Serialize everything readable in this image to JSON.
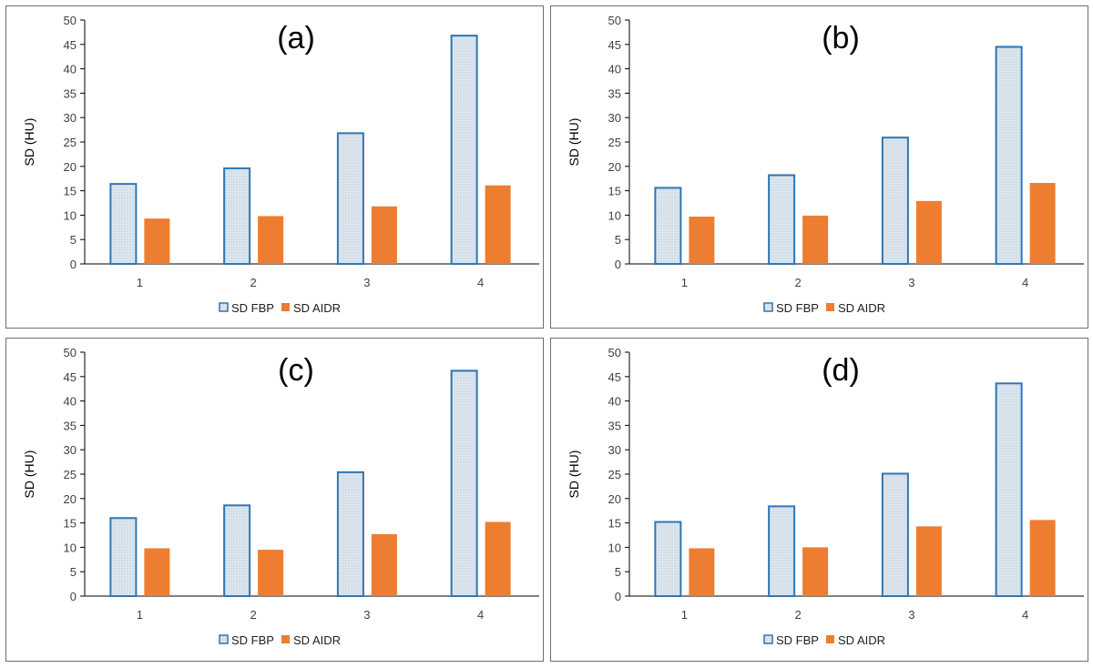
{
  "chart_data": [
    {
      "type": "bar",
      "title": "(a)",
      "ylabel": "SD (HU)",
      "xlabel": "",
      "ylim": [
        0,
        50
      ],
      "yticks": [
        0,
        5,
        10,
        15,
        20,
        25,
        30,
        35,
        40,
        45,
        50
      ],
      "categories": [
        "1",
        "2",
        "3",
        "4"
      ],
      "series": [
        {
          "name": "SD FBP",
          "values": [
            16.4,
            19.6,
            26.8,
            46.8
          ]
        },
        {
          "name": "SD AIDR",
          "values": [
            9.3,
            9.8,
            11.8,
            16.1
          ]
        }
      ],
      "legend": "bottom",
      "grid": false
    },
    {
      "type": "bar",
      "title": "(b)",
      "ylabel": "SD (HU)",
      "xlabel": "",
      "ylim": [
        0,
        50
      ],
      "yticks": [
        0,
        5,
        10,
        15,
        20,
        25,
        30,
        35,
        40,
        45,
        50
      ],
      "categories": [
        "1",
        "2",
        "3",
        "4"
      ],
      "series": [
        {
          "name": "SD FBP",
          "values": [
            15.6,
            18.2,
            25.9,
            44.5
          ]
        },
        {
          "name": "SD AIDR",
          "values": [
            9.7,
            9.9,
            12.9,
            16.6
          ]
        }
      ],
      "legend": "bottom",
      "grid": false
    },
    {
      "type": "bar",
      "title": "(c)",
      "ylabel": "SD (HU)",
      "xlabel": "",
      "ylim": [
        0,
        50
      ],
      "yticks": [
        0,
        5,
        10,
        15,
        20,
        25,
        30,
        35,
        40,
        45,
        50
      ],
      "categories": [
        "1",
        "2",
        "3",
        "4"
      ],
      "series": [
        {
          "name": "SD FBP",
          "values": [
            16.0,
            18.6,
            25.4,
            46.2
          ]
        },
        {
          "name": "SD AIDR",
          "values": [
            9.8,
            9.5,
            12.7,
            15.2
          ]
        }
      ],
      "legend": "bottom",
      "grid": false
    },
    {
      "type": "bar",
      "title": "(d)",
      "ylabel": "SD (HU)",
      "xlabel": "",
      "ylim": [
        0,
        50
      ],
      "yticks": [
        0,
        5,
        10,
        15,
        20,
        25,
        30,
        35,
        40,
        45,
        50
      ],
      "categories": [
        "1",
        "2",
        "3",
        "4"
      ],
      "series": [
        {
          "name": "SD FBP",
          "values": [
            15.2,
            18.4,
            25.1,
            43.6
          ]
        },
        {
          "name": "SD AIDR",
          "values": [
            9.8,
            10.0,
            14.3,
            15.6
          ]
        }
      ],
      "legend": "bottom",
      "grid": false
    }
  ],
  "colors": {
    "fbp_fill": "#dde7ef",
    "fbp_stroke": "#2e75b6",
    "aidr_fill": "#ed7d31",
    "axis": "#000000",
    "panel_border": "#6e6e6e"
  }
}
